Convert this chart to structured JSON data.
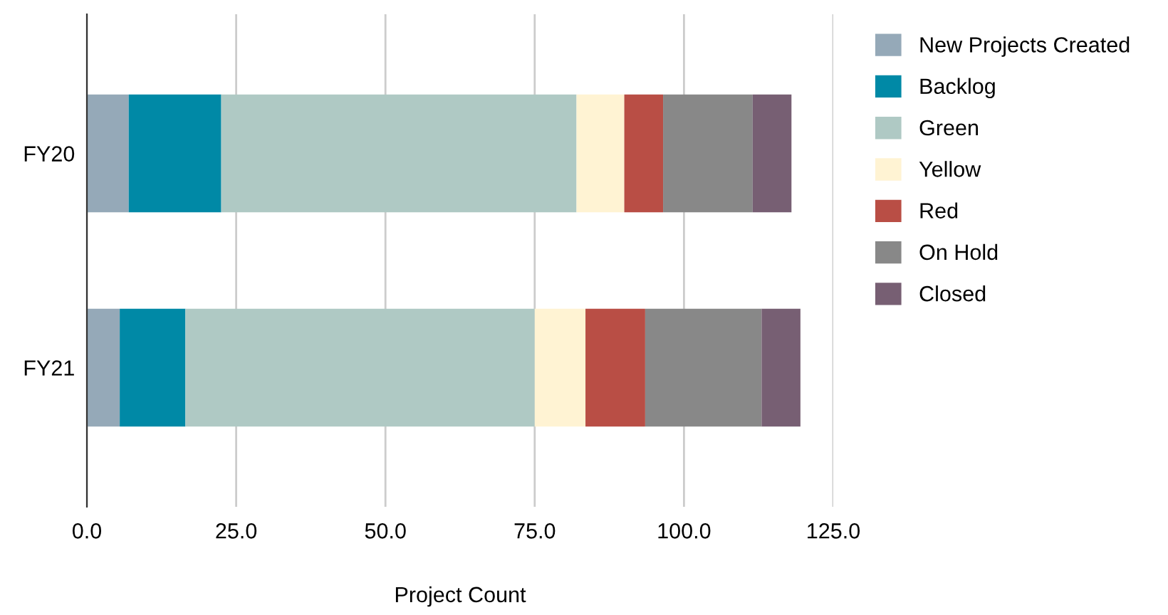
{
  "chart_data": {
    "type": "bar",
    "orientation": "horizontal",
    "stacked": true,
    "xlabel": "Project Count",
    "categories": [
      "FY20",
      "FY21"
    ],
    "series": [
      {
        "name": "New Projects Created",
        "color": "#95a9b8",
        "values": [
          7,
          5.5
        ]
      },
      {
        "name": "Backlog",
        "color": "#0089a6",
        "values": [
          15.5,
          11
        ]
      },
      {
        "name": "Green",
        "color": "#afc9c4",
        "values": [
          59.5,
          58.5
        ]
      },
      {
        "name": "Yellow",
        "color": "#fff3d3",
        "values": [
          8,
          8.5
        ]
      },
      {
        "name": "Red",
        "color": "#b94e45",
        "values": [
          6.5,
          10
        ]
      },
      {
        "name": "On Hold",
        "color": "#888888",
        "values": [
          15,
          19.5
        ]
      },
      {
        "name": "Closed",
        "color": "#775f73",
        "values": [
          6.5,
          6.5
        ]
      }
    ],
    "xlim": [
      0,
      125
    ],
    "xticks": [
      {
        "value": 0,
        "label": "0.0"
      },
      {
        "value": 25,
        "label": "25.0"
      },
      {
        "value": 50,
        "label": "50.0"
      },
      {
        "value": 75,
        "label": "75.0"
      },
      {
        "value": 100,
        "label": "100.0"
      },
      {
        "value": 125,
        "label": "125.0"
      }
    ],
    "grid": "x",
    "legend": "top right"
  }
}
